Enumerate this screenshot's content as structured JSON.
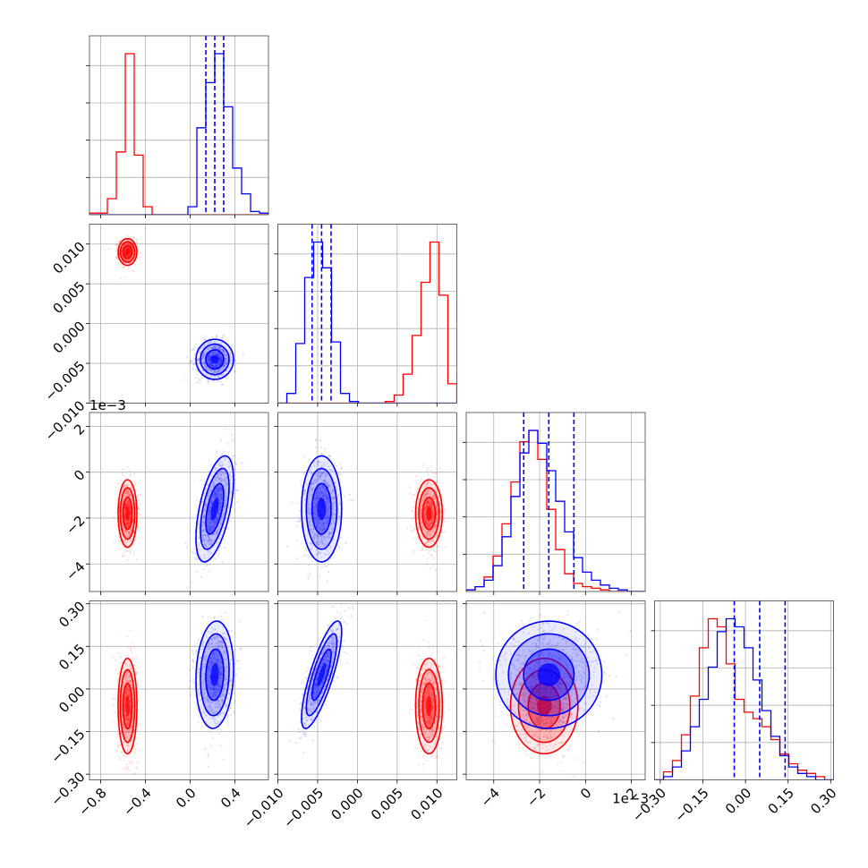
{
  "chart_data": {
    "type": "corner",
    "series": [
      {
        "name": "",
        "color": "#ff0000",
        "params": [
          {
            "mean": -0.56,
            "sd": 0.04
          },
          {
            "mean": 0.009,
            "sd": 0.0008
          },
          {
            "mean": -1.8,
            "sd": 0.7
          },
          {
            "mean": -0.06,
            "sd": 0.08
          }
        ],
        "hist": [
          [
            0.01,
            0.01,
            0.1,
            0.39,
            1.0,
            0.37,
            0.05,
            0.0,
            0.0,
            0.0,
            0.0,
            0.0,
            0.0,
            0.0,
            0.0,
            0.0,
            0.0,
            0.0,
            0.0,
            0.0
          ],
          [
            0.0,
            0.0,
            0.0,
            0.0,
            0.0,
            0.0,
            0.0,
            0.0,
            0.0,
            0.0,
            0.0,
            0.0,
            0.01,
            0.05,
            0.18,
            0.42,
            0.75,
            1.0,
            0.67,
            0.12
          ],
          [
            0.01,
            0.03,
            0.09,
            0.22,
            0.42,
            0.68,
            0.93,
            1.0,
            0.82,
            0.51,
            0.26,
            0.11,
            0.05,
            0.03,
            0.02,
            0.01,
            0.0,
            0.0,
            0.0,
            0.0
          ],
          [
            0.0,
            0.05,
            0.12,
            0.28,
            0.52,
            0.82,
            1.0,
            0.95,
            0.72,
            0.5,
            0.42,
            0.38,
            0.33,
            0.25,
            0.16,
            0.1,
            0.06,
            0.04,
            0.02,
            0.0
          ]
        ]
      },
      {
        "name": "",
        "color": "#0000ff",
        "params": [
          {
            "mean": 0.22,
            "sd": 0.08
          },
          {
            "mean": -0.0045,
            "sd": 0.0012
          },
          {
            "mean": -1.6,
            "sd": 1.1
          },
          {
            "mean": 0.05,
            "sd": 0.09
          }
        ],
        "hist": [
          [
            0.0,
            0.0,
            0.0,
            0.0,
            0.0,
            0.0,
            0.0,
            0.0,
            0.0,
            0.0,
            0.0,
            0.05,
            0.54,
            0.82,
            1.0,
            0.67,
            0.29,
            0.13,
            0.02,
            0.01
          ],
          [
            0.0,
            0.06,
            0.37,
            0.78,
            1.0,
            0.84,
            0.38,
            0.06,
            0.01,
            0.0,
            0.0,
            0.0,
            0.0,
            0.0,
            0.0,
            0.0,
            0.0,
            0.0,
            0.0,
            0.0
          ],
          [
            0.01,
            0.03,
            0.07,
            0.16,
            0.34,
            0.59,
            0.86,
            1.0,
            0.92,
            0.75,
            0.56,
            0.37,
            0.21,
            0.12,
            0.07,
            0.04,
            0.02,
            0.01,
            0.0,
            0.0
          ],
          [
            0.0,
            0.02,
            0.08,
            0.18,
            0.33,
            0.5,
            0.7,
            0.92,
            1.0,
            0.95,
            0.82,
            0.62,
            0.43,
            0.27,
            0.15,
            0.08,
            0.04,
            0.02,
            0.0,
            0.0
          ]
        ]
      }
    ],
    "axes": [
      {
        "range": [
          -0.9,
          0.7
        ],
        "ticks": [
          -0.8,
          -0.4,
          0.0,
          0.4
        ],
        "tick_labels": [
          "−0.8",
          "−0.4",
          "0.0",
          "0.4"
        ]
      },
      {
        "range": [
          -0.01,
          0.0125
        ],
        "ticks": [
          -0.01,
          -0.005,
          0.0,
          0.005,
          0.01
        ],
        "tick_labels": [
          "−0.010",
          "−0.005",
          "0.000",
          "0.005",
          "0.010"
        ]
      },
      {
        "range": [
          -5.2,
          2.6
        ],
        "ticks": [
          -4,
          -2,
          0,
          2
        ],
        "tick_labels": [
          "−4",
          "−2",
          "0",
          "2"
        ],
        "offset_text": "1e−3"
      },
      {
        "range": [
          -0.32,
          0.31
        ],
        "ticks": [
          -0.3,
          -0.15,
          0.0,
          0.15,
          0.3
        ],
        "tick_labels": [
          "−0.30",
          "−0.15",
          "0.00",
          "0.15",
          "0.30"
        ]
      }
    ],
    "quantiles_series": 1,
    "quantile_levels": [
      0.16,
      0.5,
      0.84
    ],
    "grid": true,
    "title": "",
    "xlabel": "",
    "ylabel": ""
  }
}
